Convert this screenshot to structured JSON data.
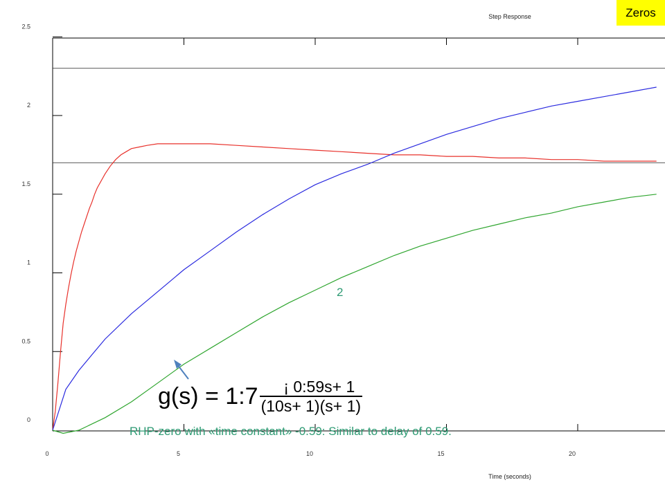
{
  "badge": {
    "label": "Zeros"
  },
  "chart_data": {
    "type": "line",
    "title": "Step Response",
    "xlabel": "Time (seconds)",
    "ylabel": "",
    "xlim": [
      0,
      23
    ],
    "ylim": [
      -0.1,
      2.5
    ],
    "xticks": [
      0,
      5,
      10,
      15,
      20
    ],
    "xtick_labels": [
      "0",
      "5",
      "10",
      "15",
      "20"
    ],
    "yticks": [
      0,
      0.5,
      1,
      1.5,
      2,
      2.5
    ],
    "ytick_labels": [
      "0",
      "0.5",
      "1",
      "1.5",
      "2",
      "2.5"
    ],
    "grid": false,
    "reference_lines": [
      1.7,
      2.3
    ],
    "series": [
      {
        "color": "#e8302a",
        "x": [
          0,
          0.1,
          0.2,
          0.3,
          0.4,
          0.5,
          0.6,
          0.7,
          0.8,
          0.9,
          1.0,
          1.1,
          1.2,
          1.3,
          1.4,
          1.5,
          1.6,
          1.7,
          1.8,
          1.9,
          2.0,
          2.2,
          2.4,
          2.6,
          2.8,
          3.0,
          3.3,
          3.6,
          4.0,
          4.5,
          5.0,
          6.0,
          7.0,
          8.0,
          9.0,
          10.0,
          11.0,
          12.0,
          13.0,
          14.0,
          15.0,
          16.0,
          17.0,
          18.0,
          19.0,
          20.0,
          21.0,
          22.0,
          23.0
        ],
        "y": [
          0,
          0.12,
          0.3,
          0.5,
          0.68,
          0.8,
          0.9,
          0.99,
          1.07,
          1.14,
          1.2,
          1.26,
          1.31,
          1.36,
          1.41,
          1.45,
          1.5,
          1.54,
          1.57,
          1.6,
          1.63,
          1.68,
          1.72,
          1.75,
          1.77,
          1.79,
          1.8,
          1.81,
          1.82,
          1.82,
          1.82,
          1.82,
          1.81,
          1.8,
          1.79,
          1.78,
          1.77,
          1.76,
          1.75,
          1.75,
          1.74,
          1.74,
          1.73,
          1.73,
          1.72,
          1.72,
          1.71,
          1.71,
          1.71
        ]
      },
      {
        "color": "#2a2adf",
        "x": [
          0,
          0.5,
          1,
          1.5,
          2,
          3,
          4,
          5,
          6,
          7,
          8,
          9,
          10,
          11,
          12,
          13,
          14,
          15,
          16,
          17,
          18,
          19,
          20,
          21,
          22,
          23
        ],
        "y": [
          0,
          0.26,
          0.38,
          0.48,
          0.58,
          0.74,
          0.88,
          1.02,
          1.14,
          1.26,
          1.37,
          1.47,
          1.56,
          1.63,
          1.69,
          1.76,
          1.82,
          1.88,
          1.93,
          1.98,
          2.02,
          2.06,
          2.09,
          2.12,
          2.15,
          2.18
        ]
      },
      {
        "color": "#2ea52e",
        "x": [
          0,
          0.4,
          1,
          2,
          3,
          4,
          5,
          6,
          7,
          8,
          9,
          10,
          11,
          12,
          13,
          14,
          15,
          16,
          17,
          18,
          19,
          20,
          21,
          22,
          23
        ],
        "y": [
          0,
          -0.02,
          0.0,
          0.08,
          0.18,
          0.3,
          0.42,
          0.52,
          0.62,
          0.72,
          0.81,
          0.89,
          0.97,
          1.04,
          1.11,
          1.17,
          1.22,
          1.27,
          1.31,
          1.35,
          1.38,
          1.42,
          1.45,
          1.48,
          1.5
        ]
      }
    ]
  },
  "annotations": {
    "marker": "2",
    "equation_lhs": "g(s) = 1:7",
    "equation_num": "¡ 0:59s+ 1",
    "equation_den": "(10s+ 1)(s+ 1)",
    "caption": "RHP-zero with «time constant» -0.59: Similar to delay of 0.59."
  }
}
